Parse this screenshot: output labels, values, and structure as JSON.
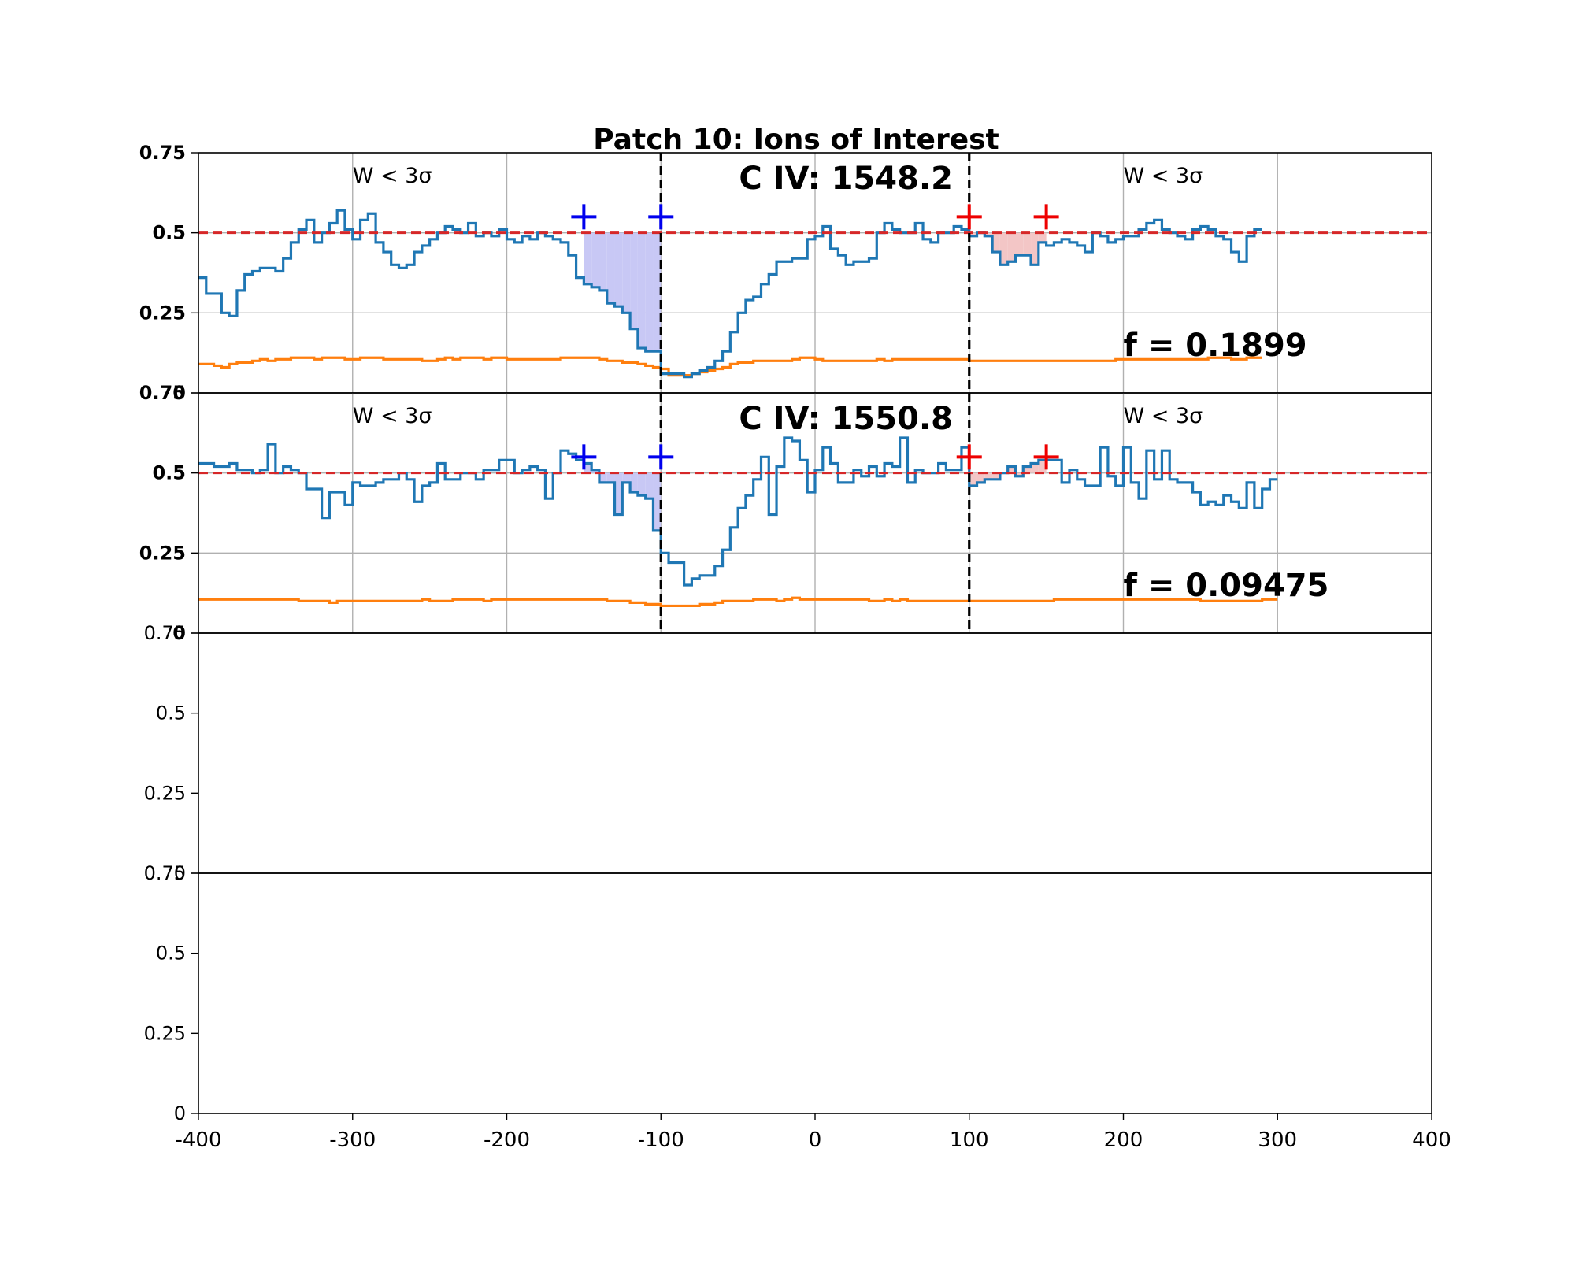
{
  "chart_data": {
    "type": "line",
    "title": "Patch 10: Ions of Interest",
    "xlim": [
      -400,
      400
    ],
    "xticks": [
      -400,
      -300,
      -200,
      -100,
      0,
      100,
      200,
      300,
      400
    ],
    "xtick_labels": [
      "-400",
      "-300",
      "-200",
      "-100",
      "0",
      "100",
      "200",
      "300",
      "400"
    ],
    "ylim": [
      0,
      0.75
    ],
    "ytick_labels": [
      "0",
      "0.25",
      "0.5",
      "0.75"
    ],
    "colors": {
      "flux": "#1f77b4",
      "error": "#ff7f0e",
      "continuum": "#d62728",
      "bounds": "#000000",
      "blue_marker": "#0000ee",
      "red_marker": "#ee0000",
      "fill": "#c8c8f5"
    },
    "panels": [
      {
        "label": "C IV: 1548.2",
        "f_label": "f = 0.1899",
        "left_note": "W < 3σ",
        "right_note": "W < 3σ",
        "continuum": 0.5,
        "integration_bounds": [
          -100,
          100
        ],
        "blue_markers": [
          [
            -150,
            0.55
          ],
          [
            -100,
            0.55
          ]
        ],
        "red_markers": [
          [
            100,
            0.55
          ],
          [
            150,
            0.55
          ]
        ],
        "flux": {
          "x_start": -400,
          "bin": 5,
          "values": [
            0.36,
            0.31,
            0.31,
            0.25,
            0.24,
            0.32,
            0.37,
            0.38,
            0.39,
            0.39,
            0.38,
            0.42,
            0.47,
            0.51,
            0.54,
            0.47,
            0.5,
            0.53,
            0.57,
            0.51,
            0.48,
            0.54,
            0.56,
            0.47,
            0.44,
            0.4,
            0.39,
            0.4,
            0.44,
            0.46,
            0.48,
            0.5,
            0.52,
            0.51,
            0.5,
            0.53,
            0.49,
            0.5,
            0.49,
            0.51,
            0.48,
            0.47,
            0.49,
            0.48,
            0.5,
            0.49,
            0.48,
            0.47,
            0.43,
            0.36,
            0.34,
            0.33,
            0.32,
            0.28,
            0.27,
            0.25,
            0.2,
            0.14,
            0.13,
            0.13,
            0.06,
            0.06,
            0.06,
            0.05,
            0.06,
            0.07,
            0.08,
            0.1,
            0.13,
            0.19,
            0.25,
            0.29,
            0.3,
            0.34,
            0.37,
            0.41,
            0.41,
            0.42,
            0.42,
            0.48,
            0.49,
            0.52,
            0.45,
            0.43,
            0.4,
            0.41,
            0.41,
            0.42,
            0.5,
            0.53,
            0.51,
            0.5,
            0.5,
            0.53,
            0.48,
            0.47,
            0.5,
            0.5,
            0.52,
            0.51,
            0.49,
            0.5,
            0.49,
            0.44,
            0.4,
            0.41,
            0.43,
            0.43,
            0.4,
            0.47,
            0.46,
            0.47,
            0.48,
            0.47,
            0.46,
            0.44,
            0.5,
            0.49,
            0.47,
            0.48,
            0.49,
            0.49,
            0.51,
            0.53,
            0.54,
            0.51,
            0.5,
            0.49,
            0.48,
            0.51,
            0.52,
            0.51,
            0.49,
            0.48,
            0.44,
            0.41,
            0.49,
            0.51
          ],
          "bin_counts_note": ""
        },
        "error": {
          "x_start": -400,
          "bin": 5,
          "values": [
            0.09,
            0.09,
            0.085,
            0.08,
            0.09,
            0.095,
            0.095,
            0.1,
            0.105,
            0.1,
            0.105,
            0.105,
            0.11,
            0.11,
            0.11,
            0.105,
            0.11,
            0.11,
            0.11,
            0.105,
            0.105,
            0.11,
            0.11,
            0.11,
            0.105,
            0.105,
            0.105,
            0.105,
            0.105,
            0.1,
            0.1,
            0.105,
            0.11,
            0.105,
            0.11,
            0.11,
            0.11,
            0.105,
            0.11,
            0.11,
            0.105,
            0.105,
            0.105,
            0.105,
            0.105,
            0.105,
            0.105,
            0.11,
            0.11,
            0.11,
            0.11,
            0.11,
            0.105,
            0.1,
            0.1,
            0.095,
            0.095,
            0.09,
            0.085,
            0.08,
            0.075,
            0.055,
            0.055,
            0.055,
            0.06,
            0.065,
            0.07,
            0.075,
            0.08,
            0.09,
            0.095,
            0.095,
            0.1,
            0.1,
            0.1,
            0.1,
            0.1,
            0.105,
            0.11,
            0.11,
            0.105,
            0.1,
            0.1,
            0.1,
            0.1,
            0.1,
            0.1,
            0.1,
            0.105,
            0.1,
            0.105,
            0.105,
            0.105,
            0.105,
            0.105,
            0.105,
            0.105,
            0.105,
            0.105,
            0.105,
            0.1,
            0.1,
            0.1,
            0.1,
            0.1,
            0.1,
            0.1,
            0.1,
            0.1,
            0.1,
            0.1,
            0.1,
            0.1,
            0.1,
            0.1,
            0.1,
            0.1,
            0.1,
            0.1,
            0.105,
            0.105,
            0.105,
            0.105,
            0.105,
            0.105,
            0.105,
            0.105,
            0.105,
            0.105,
            0.105,
            0.105,
            0.11,
            0.11,
            0.11,
            0.105,
            0.105,
            0.11,
            0.11
          ]
        }
      },
      {
        "label": "C IV: 1550.8",
        "f_label": "f = 0.09475",
        "left_note": "W < 3σ",
        "right_note": "W < 3σ",
        "continuum": 0.5,
        "integration_bounds": [
          -100,
          100
        ],
        "blue_markers": [
          [
            -150,
            0.55
          ],
          [
            -100,
            0.55
          ]
        ],
        "red_markers": [
          [
            100,
            0.55
          ],
          [
            150,
            0.55
          ]
        ],
        "flux": {
          "x_start": -400,
          "bin": 5,
          "values": [
            0.53,
            0.53,
            0.52,
            0.52,
            0.53,
            0.51,
            0.51,
            0.5,
            0.51,
            0.59,
            0.5,
            0.52,
            0.51,
            0.5,
            0.45,
            0.45,
            0.36,
            0.44,
            0.44,
            0.4,
            0.47,
            0.46,
            0.46,
            0.47,
            0.48,
            0.48,
            0.5,
            0.48,
            0.41,
            0.46,
            0.47,
            0.53,
            0.48,
            0.48,
            0.5,
            0.5,
            0.48,
            0.51,
            0.51,
            0.54,
            0.54,
            0.5,
            0.51,
            0.52,
            0.51,
            0.42,
            0.5,
            0.57,
            0.56,
            0.54,
            0.53,
            0.51,
            0.47,
            0.47,
            0.37,
            0.47,
            0.44,
            0.43,
            0.42,
            0.32,
            0.25,
            0.22,
            0.22,
            0.15,
            0.17,
            0.18,
            0.18,
            0.21,
            0.26,
            0.33,
            0.39,
            0.43,
            0.48,
            0.55,
            0.37,
            0.52,
            0.61,
            0.6,
            0.54,
            0.44,
            0.51,
            0.58,
            0.53,
            0.47,
            0.47,
            0.51,
            0.49,
            0.52,
            0.49,
            0.53,
            0.52,
            0.61,
            0.47,
            0.51,
            0.5,
            0.5,
            0.53,
            0.51,
            0.51,
            0.58,
            0.46,
            0.47,
            0.48,
            0.48,
            0.5,
            0.52,
            0.49,
            0.52,
            0.53,
            0.54,
            0.54,
            0.54,
            0.47,
            0.51,
            0.48,
            0.46,
            0.46,
            0.58,
            0.49,
            0.46,
            0.58,
            0.47,
            0.42,
            0.57,
            0.48,
            0.57,
            0.48,
            0.47,
            0.47,
            0.44,
            0.4,
            0.41,
            0.4,
            0.43,
            0.41,
            0.39,
            0.47,
            0.39,
            0.45,
            0.48
          ],
          "bin_counts_note": ""
        },
        "error": {
          "x_start": -400,
          "bin": 5,
          "values": [
            0.105,
            0.105,
            0.105,
            0.105,
            0.105,
            0.105,
            0.105,
            0.105,
            0.105,
            0.105,
            0.105,
            0.105,
            0.105,
            0.1,
            0.1,
            0.1,
            0.1,
            0.095,
            0.1,
            0.1,
            0.1,
            0.1,
            0.1,
            0.1,
            0.1,
            0.1,
            0.1,
            0.1,
            0.1,
            0.105,
            0.1,
            0.1,
            0.1,
            0.105,
            0.105,
            0.105,
            0.105,
            0.1,
            0.105,
            0.105,
            0.105,
            0.105,
            0.105,
            0.105,
            0.105,
            0.105,
            0.105,
            0.105,
            0.105,
            0.105,
            0.105,
            0.105,
            0.105,
            0.1,
            0.1,
            0.1,
            0.095,
            0.095,
            0.09,
            0.09,
            0.085,
            0.085,
            0.085,
            0.085,
            0.085,
            0.09,
            0.09,
            0.095,
            0.1,
            0.1,
            0.1,
            0.1,
            0.105,
            0.105,
            0.105,
            0.1,
            0.105,
            0.11,
            0.105,
            0.105,
            0.105,
            0.105,
            0.105,
            0.105,
            0.105,
            0.105,
            0.105,
            0.1,
            0.1,
            0.105,
            0.1,
            0.105,
            0.1,
            0.1,
            0.1,
            0.1,
            0.1,
            0.1,
            0.1,
            0.1,
            0.1,
            0.1,
            0.1,
            0.1,
            0.1,
            0.1,
            0.1,
            0.1,
            0.1,
            0.1,
            0.1,
            0.105,
            0.105,
            0.105,
            0.105,
            0.105,
            0.105,
            0.105,
            0.105,
            0.105,
            0.105,
            0.105,
            0.105,
            0.105,
            0.105,
            0.105,
            0.105,
            0.105,
            0.105,
            0.105,
            0.1,
            0.1,
            0.1,
            0.1,
            0.1,
            0.1,
            0.1,
            0.1,
            0.105,
            0.105
          ]
        }
      },
      {
        "label": "",
        "empty": true
      },
      {
        "label": "",
        "empty": true
      }
    ]
  }
}
